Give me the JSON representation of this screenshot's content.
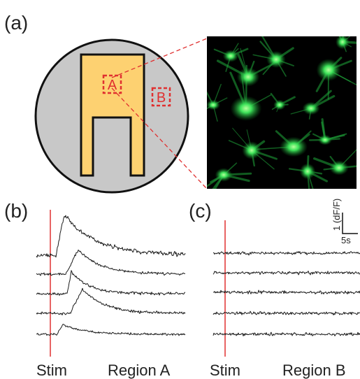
{
  "panels": {
    "a": {
      "label": "(a)",
      "region_a_label": "A",
      "region_b_label": "B",
      "colors": {
        "dish_fill": "#c8c8c8",
        "device_fill": "#fdd171",
        "outline": "#111111",
        "marker": "#e03030",
        "cell_green": "#2ed04a",
        "image_background": "#000000"
      }
    },
    "b": {
      "label": "(b)",
      "stim_label": "Stim",
      "region_label": "Region A",
      "trace_count": 5
    },
    "c": {
      "label": "(c)",
      "stim_label": "Stim",
      "region_label": "Region B",
      "trace_count": 5
    }
  },
  "scale_bar": {
    "y_label": "1 (dF/F)",
    "x_label": "5s"
  },
  "colors": {
    "trace": "#1a1a1a",
    "stim_line": "#e03030"
  }
}
